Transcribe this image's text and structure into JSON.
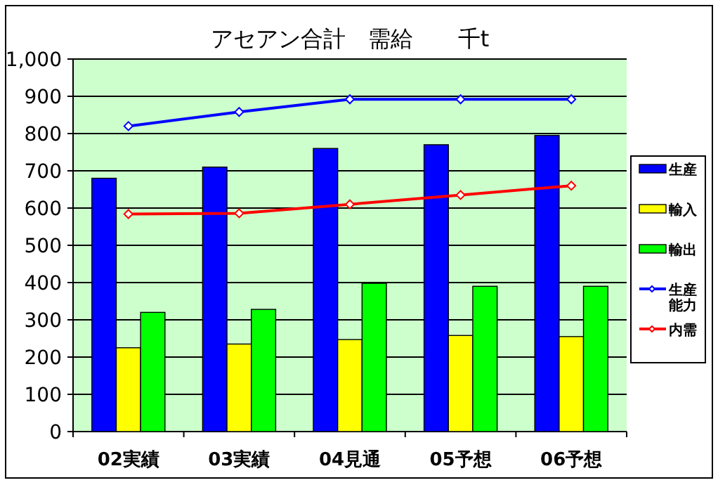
{
  "chart_data": {
    "type": "bar",
    "title": "アセアン合計　需給　　千t",
    "categories": [
      "02実績",
      "03実績",
      "04見通",
      "05予想",
      "06予想"
    ],
    "series": [
      {
        "name": "生産",
        "color": "#0000ff",
        "values": [
          680,
          710,
          760,
          770,
          795
        ]
      },
      {
        "name": "輸入",
        "color": "#ffff00",
        "values": [
          225,
          235,
          247,
          258,
          255
        ]
      },
      {
        "name": "輸出",
        "color": "#00ff00",
        "values": [
          320,
          328,
          398,
          390,
          390
        ]
      },
      {
        "name": "生産能力",
        "type": "line",
        "color": "#0000ff",
        "values": [
          820,
          858,
          892,
          892,
          892
        ]
      },
      {
        "name": "内需",
        "type": "line",
        "color": "#ff0000",
        "values": [
          584,
          586,
          610,
          635,
          660
        ]
      }
    ],
    "ylim": [
      0,
      1000
    ],
    "yticks": [
      0,
      100,
      200,
      300,
      400,
      500,
      600,
      700,
      800,
      900,
      {
        "value": 1000,
        "label": "1,000"
      }
    ],
    "grid": "y",
    "legend": "right",
    "marker": "diamond",
    "line_style": "solid"
  }
}
